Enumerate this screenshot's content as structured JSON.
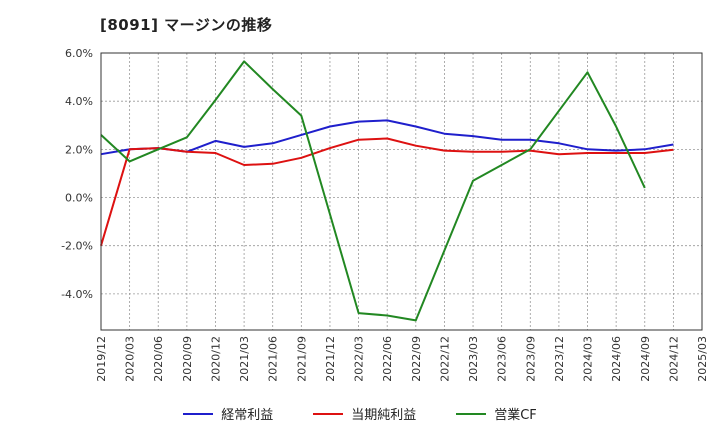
{
  "title": "[8091]  マージンの推移",
  "chart_data": {
    "type": "line",
    "x": [
      "2019/12",
      "2020/03",
      "2020/06",
      "2020/09",
      "2020/12",
      "2021/03",
      "2021/06",
      "2021/09",
      "2021/12",
      "2022/03",
      "2022/06",
      "2022/09",
      "2022/12",
      "2023/03",
      "2023/06",
      "2023/09",
      "2023/12",
      "2024/03",
      "2024/06",
      "2024/09",
      "2024/12",
      "2025/03"
    ],
    "y_ticks": [
      "6.0%",
      "4.0%",
      "2.0%",
      "0.0%",
      "-2.0%",
      "-4.0%"
    ],
    "ylim": [
      -5.5,
      6.0
    ],
    "grid": true,
    "legend_position": "bottom",
    "series": [
      {
        "name": "経常利益",
        "color": "#1f1fcc",
        "values": [
          1.8,
          2.0,
          2.05,
          1.9,
          2.35,
          2.1,
          2.25,
          2.6,
          2.95,
          3.15,
          3.2,
          2.95,
          2.65,
          2.55,
          2.4,
          2.4,
          2.25,
          2.0,
          1.95,
          2.0,
          2.2,
          null
        ]
      },
      {
        "name": "当期純利益",
        "color": "#dd1111",
        "values": [
          -2.0,
          2.0,
          2.05,
          1.9,
          1.85,
          1.35,
          1.4,
          1.65,
          2.05,
          2.4,
          2.45,
          2.15,
          1.95,
          1.9,
          1.9,
          1.95,
          1.8,
          1.85,
          1.85,
          1.85,
          1.98,
          null
        ]
      },
      {
        "name": "営業CF",
        "color": "#228822",
        "values": [
          2.6,
          1.5,
          2.0,
          2.5,
          4.05,
          5.65,
          4.5,
          3.4,
          -0.7,
          -4.8,
          -4.9,
          -5.1,
          -2.2,
          0.7,
          1.35,
          2.0,
          3.6,
          5.2,
          2.95,
          0.4,
          null,
          null
        ]
      }
    ]
  }
}
